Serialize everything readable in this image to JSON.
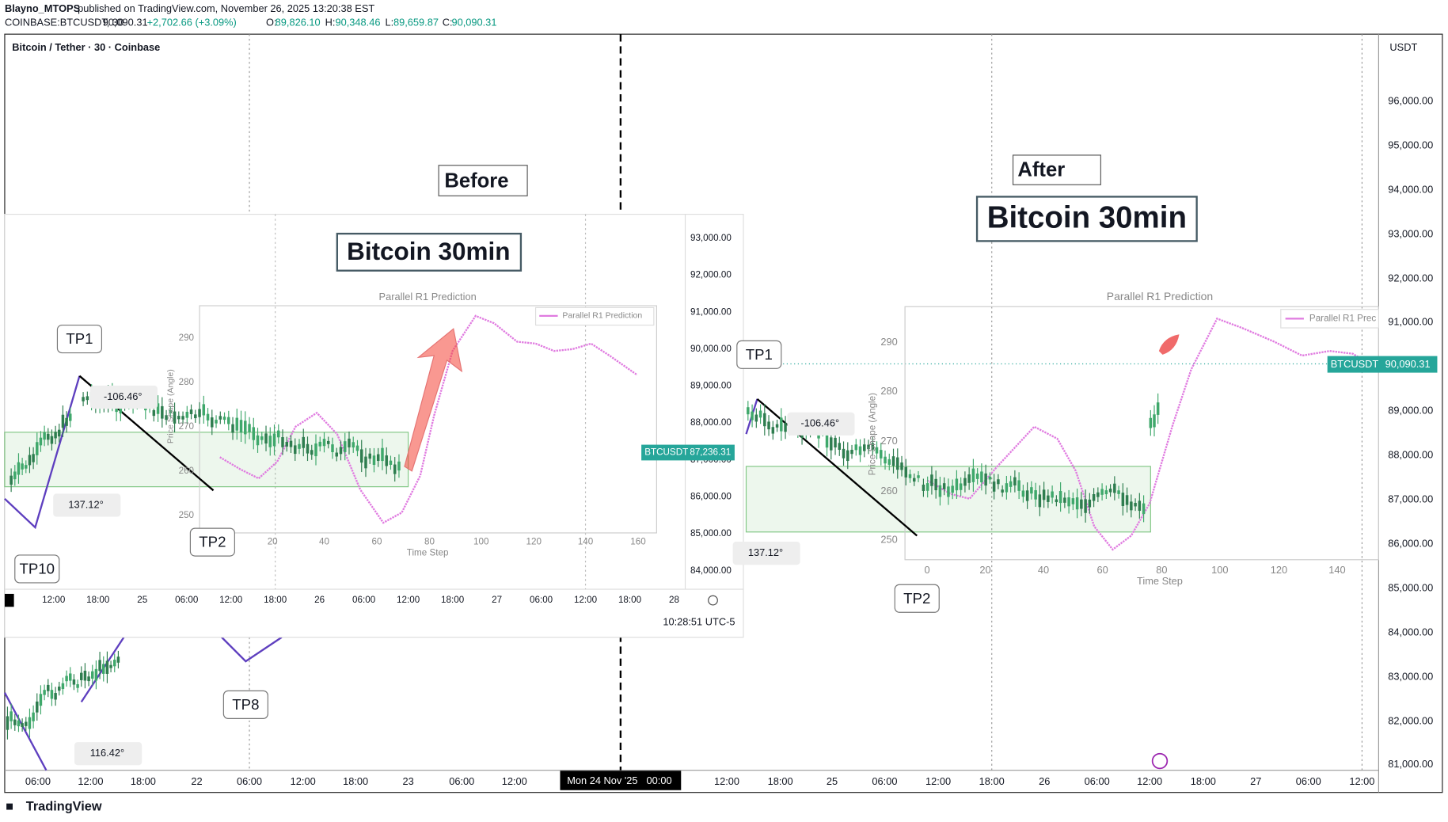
{
  "header": {
    "author": "Blayno_MTOPS",
    "published": "published on TradingView.com, November 26, 2025 13:20:38 EST",
    "quote": [
      "COINBASE:BTCUSDT, 30",
      "90,090.31",
      "+2,702.66 (+3.09%)",
      "O:",
      "89,826.10",
      "H:",
      "90,348.46",
      "L:",
      "89,659.87",
      "C:",
      "90,090.31"
    ]
  },
  "main": {
    "symbol_title": "Bitcoin / Tether · 30 · Coinbase",
    "currency": "USDT",
    "price_axis": [
      "96,000.00",
      "95,000.00",
      "94,000.00",
      "93,000.00",
      "92,000.00",
      "91,000.00",
      "89,000.00",
      "88,000.00",
      "87,000.00",
      "86,000.00",
      "85,000.00",
      "84,000.00",
      "83,000.00",
      "82,000.00",
      "81,000.00"
    ],
    "time_axis": [
      "06:00",
      "12:00",
      "18:00",
      "22",
      "06:00",
      "12:00",
      "18:00",
      "23",
      "06:00",
      "12:00",
      "12:00",
      "18:00",
      "25",
      "06:00",
      "12:00",
      "18:00",
      "26",
      "06:00",
      "12:00",
      "18:00",
      "27",
      "06:00",
      "12:00"
    ],
    "crosshair_date": "Mon 24 Nov '25",
    "crosshair_time": "00:00",
    "price_tag": {
      "symbol": "BTCUSDT",
      "price": "90,090.31"
    }
  },
  "inset": {
    "price_axis": [
      "93,000.00",
      "92,000.00",
      "91,000.00",
      "90,000.00",
      "89,000.00",
      "88,000.00",
      "87,000.00",
      "86,000.00",
      "85,000.00",
      "84,000.00"
    ],
    "time_axis": [
      "12:00",
      "18:00",
      "25",
      "06:00",
      "12:00",
      "18:00",
      "26",
      "06:00",
      "12:00",
      "18:00",
      "27",
      "06:00",
      "12:00",
      "18:00",
      "28"
    ],
    "price_tag": {
      "symbol": "BTCUSDT",
      "price": "87,236.31"
    },
    "clock": "10:28:51 UTC-5"
  },
  "before_plot": {
    "title": "Parallel R1 Prediction",
    "legend": "Parallel R1 Prediction",
    "y_label": "Price Shape (Angle)",
    "x_label": "Time Step",
    "yticks": [
      "290",
      "280",
      "270",
      "260",
      "250"
    ],
    "xticks": [
      "20",
      "40",
      "60",
      "80",
      "100",
      "120",
      "140",
      "160"
    ]
  },
  "after_plot": {
    "title": "Parallel R1 Prediction",
    "legend": "Parallel R1 Prec",
    "y_label": "Price Shape (Angle)",
    "x_label": "Time Step",
    "yticks": [
      "290",
      "280",
      "270",
      "260",
      "250"
    ],
    "xticks": [
      "0",
      "20",
      "40",
      "60",
      "80",
      "100",
      "120",
      "140"
    ]
  },
  "annotations": {
    "before": "Before",
    "after": "After",
    "title_left": "Bitcoin 30min",
    "title_right": "Bitcoin 30min",
    "tp": [
      "TP1",
      "TP10",
      "TP2",
      "TP8",
      "TP1",
      "TP2"
    ],
    "angles": [
      "-106.46°",
      "137.12°",
      "116.42°",
      "-106.46°",
      "137.12°"
    ]
  },
  "footer": {
    "brand": "TradingView"
  }
}
